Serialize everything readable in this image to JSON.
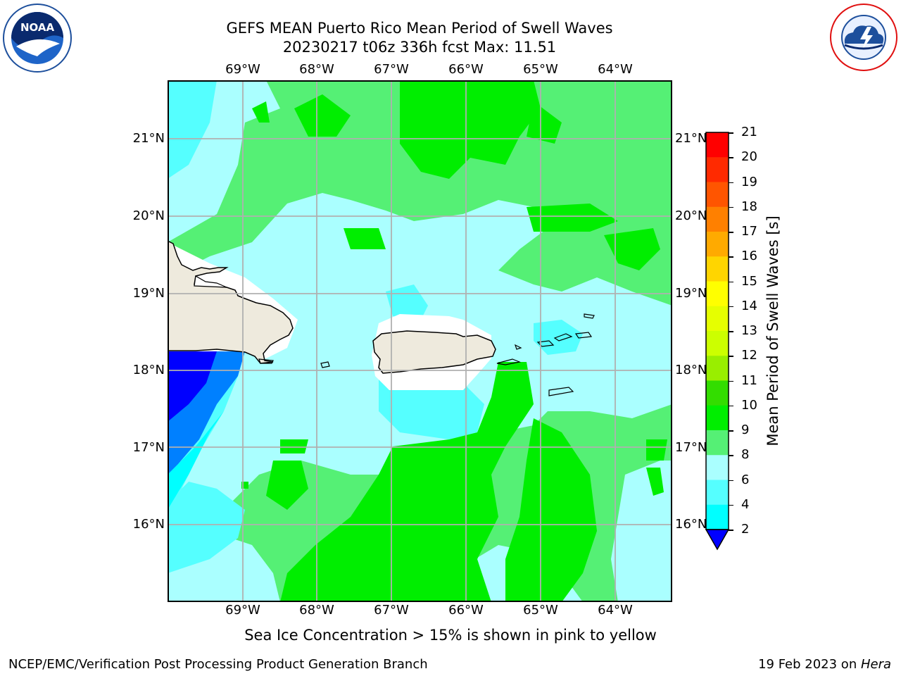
{
  "header": {
    "title_line1": "GEFS MEAN Puerto Rico Mean Period of Swell Waves",
    "title_line2": "20230217 t06z 336h fcst   Max: 11.51"
  },
  "logos": {
    "left": {
      "name": "NOAA",
      "ring_text": "NATIONAL OCEANIC AND ATMOSPHERIC ADMINISTRATION · U.S. DEPARTMENT OF COMMERCE"
    },
    "right": {
      "ring_text": "NATIONAL WEATHER SERVICE"
    }
  },
  "map": {
    "lon_labels": [
      "69°W",
      "68°W",
      "67°W",
      "66°W",
      "65°W",
      "64°W"
    ],
    "lat_labels": [
      "21°N",
      "20°N",
      "19°N",
      "18°N",
      "17°N",
      "16°N"
    ]
  },
  "colorbar": {
    "title": "Mean Period of Swell Waves [s]",
    "tick_labels": [
      "21",
      "20",
      "19",
      "18",
      "17",
      "16",
      "15",
      "14",
      "13",
      "12",
      "11",
      "10",
      "9",
      "8",
      "6",
      "4",
      "2"
    ],
    "colors": [
      "#ff0000",
      "#ff2a00",
      "#ff5500",
      "#ff8000",
      "#ffaa00",
      "#ffd500",
      "#ffff00",
      "#e6ff00",
      "#ccff00",
      "#99ee00",
      "#33dd00",
      "#00ee00",
      "#55f075",
      "#aaffff",
      "#55ffff",
      "#00ffff",
      "#0080ff",
      "#0000ff"
    ]
  },
  "colors": {
    "land": "#eeeadd",
    "level_6_8": "#55ffff",
    "level_8_9": "#aaffff",
    "level_9_10": "#55f075",
    "level_10_11": "#00ee00",
    "level_4_6": "#00ffff",
    "level_2_4": "#0080ff",
    "level_below_2": "#0000ff"
  },
  "footer": {
    "subtitle": "Sea Ice Concentration > 15% is shown in pink to yellow",
    "left": "NCEP/EMC/Verification Post Processing Product Generation Branch",
    "right_date": "19 Feb 2023 on ",
    "right_host": "Hera"
  }
}
